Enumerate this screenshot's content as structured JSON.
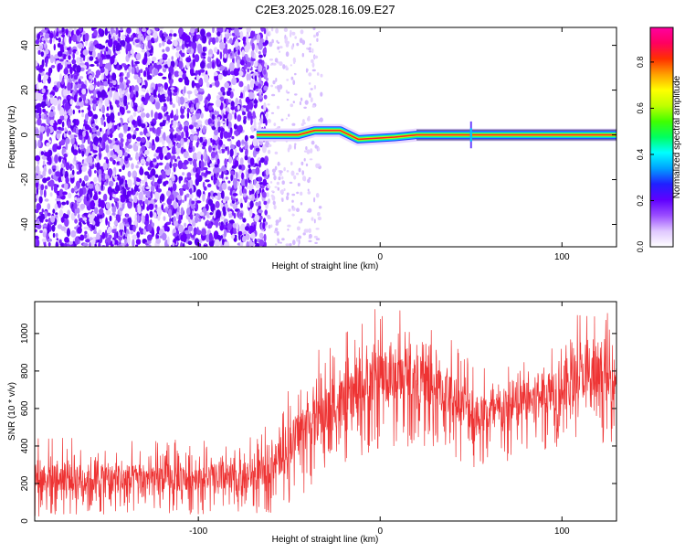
{
  "title": "C2E3.2025.028.16.09.E27",
  "chart_data": [
    {
      "type": "heatmap",
      "xlabel": "Height of straight line (km)",
      "ylabel": "Frequency (Hz)",
      "xlim": [
        -190,
        130
      ],
      "ylim": [
        -50,
        48
      ],
      "x_ticks": [
        -100,
        0,
        100
      ],
      "y_ticks": [
        -40,
        -20,
        0,
        20,
        40
      ],
      "colorbar": {
        "label": "Normalized spectral amplitude",
        "range": [
          0.0,
          0.95
        ],
        "ticks": [
          0.0,
          0.2,
          0.4,
          0.6,
          0.8
        ],
        "colors": [
          "#ffffff",
          "#e0c8ff",
          "#9a4dff",
          "#6000ff",
          "#2020ff",
          "#00a0ff",
          "#00ffff",
          "#00ff60",
          "#40ff00",
          "#c0ff00",
          "#ffff00",
          "#ffa000",
          "#ff3000",
          "#ff0060",
          "#ff00a0"
        ]
      },
      "features": {
        "noise_region_x": [
          -190,
          -62
        ],
        "ridge": [
          {
            "x": -68,
            "f": 0
          },
          {
            "x": -45,
            "f": 0
          },
          {
            "x": -36,
            "f": 2
          },
          {
            "x": -22,
            "f": 2
          },
          {
            "x": -12,
            "f": -2
          },
          {
            "x": 8,
            "f": -1
          },
          {
            "x": 20,
            "f": 0
          },
          {
            "x": 130,
            "f": 0
          }
        ],
        "spike_x": 50
      }
    },
    {
      "type": "line",
      "xlabel": "Height of straight line (km)",
      "ylabel": "SNR (10 * v/v)",
      "xlim": [
        -190,
        130
      ],
      "ylim": [
        0,
        1170
      ],
      "x_ticks": [
        -100,
        0,
        100
      ],
      "y_ticks": [
        0,
        200,
        400,
        600,
        800,
        1000
      ],
      "series": [
        {
          "color": "#ee3333",
          "envelope": [
            {
              "x": -190,
              "low": 20,
              "high": 460
            },
            {
              "x": -160,
              "low": 30,
              "high": 440
            },
            {
              "x": -130,
              "low": 35,
              "high": 430
            },
            {
              "x": -100,
              "low": 35,
              "high": 440
            },
            {
              "x": -80,
              "low": 30,
              "high": 440
            },
            {
              "x": -65,
              "low": 30,
              "high": 470
            },
            {
              "x": -55,
              "low": 60,
              "high": 660
            },
            {
              "x": -40,
              "low": 150,
              "high": 900
            },
            {
              "x": -20,
              "low": 300,
              "high": 1000
            },
            {
              "x": 0,
              "low": 380,
              "high": 1160
            },
            {
              "x": 20,
              "low": 400,
              "high": 1140
            },
            {
              "x": 40,
              "low": 340,
              "high": 1000
            },
            {
              "x": 55,
              "low": 260,
              "high": 880
            },
            {
              "x": 70,
              "low": 300,
              "high": 900
            },
            {
              "x": 90,
              "low": 380,
              "high": 1000
            },
            {
              "x": 110,
              "low": 420,
              "high": 1160
            },
            {
              "x": 130,
              "low": 420,
              "high": 1100
            }
          ]
        }
      ]
    }
  ]
}
